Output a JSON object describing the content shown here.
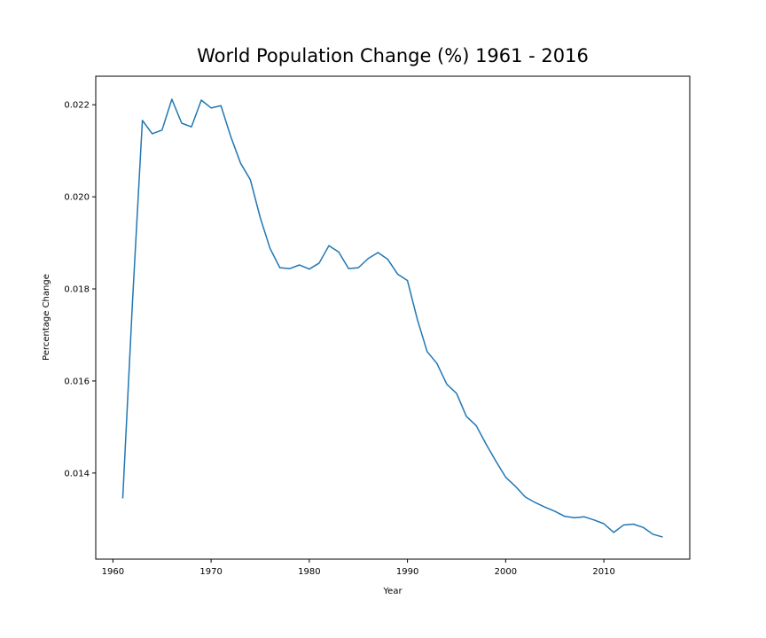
{
  "chart_data": {
    "type": "line",
    "title": "World Population Change (%) 1961 - 2016",
    "xlabel": "Year",
    "ylabel": "Percentage Change",
    "xlim": [
      1958.25,
      2018.75
    ],
    "ylim": [
      0.01213,
      0.02262
    ],
    "xticks": [
      1960,
      1970,
      1980,
      1990,
      2000,
      2010
    ],
    "xtick_labels": [
      "1960",
      "1970",
      "1980",
      "1990",
      "2000",
      "2010"
    ],
    "yticks": [
      0.014,
      0.016,
      0.018,
      0.02,
      0.022
    ],
    "ytick_labels": [
      "0.014",
      "0.016",
      "0.018",
      "0.020",
      "0.022"
    ],
    "grid": false,
    "line_color": "#1f77b4",
    "series": [
      {
        "x": [
          1961,
          1962,
          1963,
          1964,
          1965,
          1966,
          1967,
          1968,
          1969,
          1970,
          1971,
          1972,
          1973,
          1974,
          1975,
          1976,
          1977,
          1978,
          1979,
          1980,
          1981,
          1982,
          1983,
          1984,
          1985,
          1986,
          1987,
          1988,
          1989,
          1990,
          1991,
          1992,
          1993,
          1994,
          1995,
          1996,
          1997,
          1998,
          1999,
          2000,
          2001,
          2002,
          2003,
          2004,
          2005,
          2006,
          2007,
          2008,
          2009,
          2010,
          2011,
          2012,
          2013,
          2014,
          2015,
          2016
        ],
        "values": [
          0.01345,
          0.01775,
          0.02166,
          0.02137,
          0.02145,
          0.02212,
          0.0216,
          0.02152,
          0.0221,
          0.02193,
          0.02198,
          0.02131,
          0.02073,
          0.02037,
          0.01955,
          0.01888,
          0.01846,
          0.01844,
          0.01852,
          0.01843,
          0.01856,
          0.01894,
          0.0188,
          0.01844,
          0.01846,
          0.01866,
          0.01879,
          0.01864,
          0.01832,
          0.01818,
          0.01734,
          0.01664,
          0.01638,
          0.01593,
          0.01573,
          0.01523,
          0.01503,
          0.01463,
          0.01426,
          0.01391,
          0.01371,
          0.01348,
          0.01336,
          0.01326,
          0.01317,
          0.01306,
          0.01303,
          0.01305,
          0.01298,
          0.0129,
          0.01271,
          0.01287,
          0.01289,
          0.01282,
          0.01267,
          0.01261
        ]
      }
    ]
  }
}
